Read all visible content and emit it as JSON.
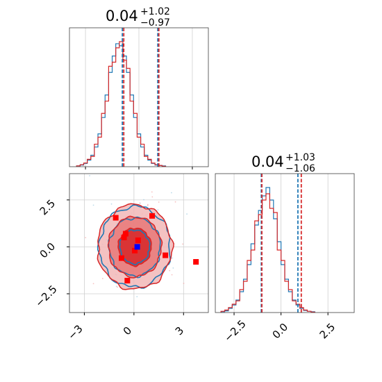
{
  "colors": {
    "blue": "#1f77b4",
    "red": "#d62728",
    "marker_red": "#ff0000",
    "marker_blue": "#0000ff"
  },
  "chart_data": [
    {
      "type": "histogram",
      "panel": "top-left",
      "title": {
        "main": "0.04",
        "sup": "+1.02",
        "sub": "−0.97"
      },
      "xlim": [
        -3.9,
        3.9
      ],
      "grid": true,
      "bins_start": -3.5,
      "bin_width": 0.2,
      "series": [
        {
          "name": "",
          "color": "#1f77b4",
          "counts": [
            2,
            4,
            8,
            16,
            28,
            48,
            80,
            120,
            175,
            230,
            270,
            300,
            295,
            270,
            230,
            175,
            120,
            80,
            48,
            28,
            16,
            8,
            4,
            3,
            2
          ],
          "quantiles": [
            -0.93,
            1.06
          ]
        },
        {
          "name": "",
          "color": "#d62728",
          "counts": [
            2,
            5,
            9,
            18,
            25,
            55,
            72,
            130,
            160,
            245,
            255,
            290,
            305,
            260,
            240,
            160,
            130,
            72,
            55,
            25,
            18,
            9,
            5,
            3,
            1
          ],
          "quantiles": [
            -0.85,
            1.12
          ]
        }
      ]
    },
    {
      "type": "contour-scatter",
      "panel": "bottom-left",
      "xlim": [
        -3.9,
        4.5
      ],
      "ylim": [
        -3.5,
        3.9
      ],
      "x_ticks": [
        "−3",
        "0",
        "3"
      ],
      "y_ticks": [
        "2.5",
        "0.0",
        "−2.5"
      ],
      "grid": true,
      "blue_contour_radii": [
        0.9,
        1.55,
        2.15
      ],
      "red_contour_radii": [
        1.0,
        1.6,
        2.25
      ],
      "red_markers": [
        [
          -1.1,
          1.55
        ],
        [
          -0.6,
          0.5
        ],
        [
          -0.5,
          0.7
        ],
        [
          -0.75,
          -0.6
        ],
        [
          -0.4,
          -1.8
        ],
        [
          0.05,
          -0.2
        ],
        [
          0.25,
          0.35
        ],
        [
          1.1,
          1.65
        ],
        [
          1.9,
          -0.45
        ],
        [
          3.75,
          -0.8
        ]
      ],
      "blue_markers": [
        [
          0.2,
          0.0
        ]
      ]
    },
    {
      "type": "histogram",
      "panel": "bottom-right",
      "title": {
        "main": "0.04",
        "sup": "+1.03",
        "sub": "−1.06"
      },
      "xlim": [
        -3.5,
        3.9
      ],
      "x_ticks": [
        "−2.5",
        "0.0",
        "2.5"
      ],
      "grid": true,
      "bins_start": -3.2,
      "bin_width": 0.2,
      "series": [
        {
          "name": "",
          "color": "#1f77b4",
          "counts": [
            2,
            4,
            10,
            18,
            30,
            50,
            80,
            115,
            165,
            210,
            245,
            280,
            300,
            270,
            225,
            170,
            115,
            80,
            50,
            30,
            18,
            10,
            5,
            3,
            2
          ],
          "quantiles": [
            -1.05,
            0.9
          ]
        },
        {
          "name": "",
          "color": "#d62728",
          "counts": [
            3,
            6,
            12,
            20,
            28,
            55,
            75,
            125,
            150,
            220,
            235,
            270,
            285,
            250,
            240,
            150,
            125,
            75,
            55,
            28,
            20,
            12,
            6,
            3,
            1
          ],
          "quantiles": [
            -1.02,
            1.08
          ]
        }
      ]
    }
  ]
}
